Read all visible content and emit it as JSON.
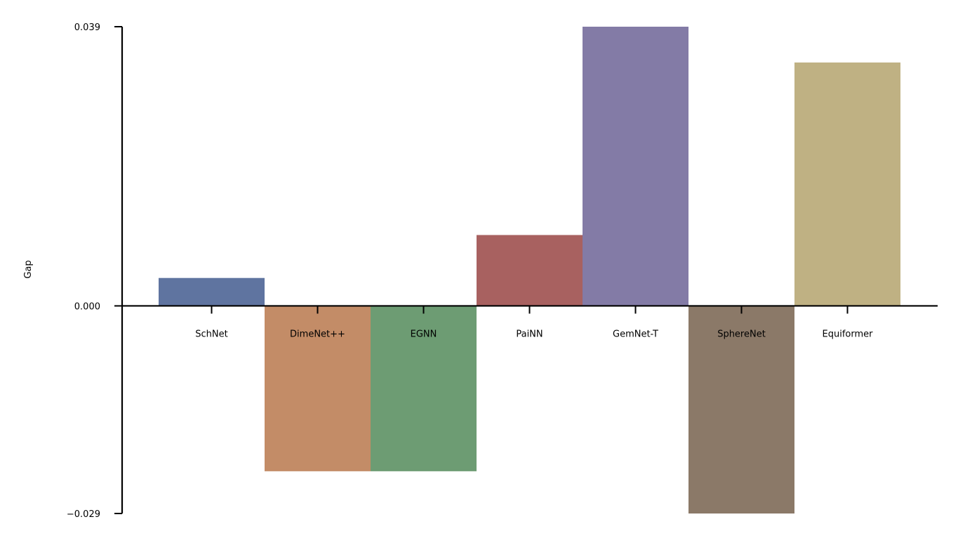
{
  "chart_data": {
    "type": "bar",
    "title": "",
    "xlabel": "",
    "ylabel": "Gap",
    "categories": [
      "SchNet",
      "DimeNet++",
      "EGNN",
      "PaiNN",
      "GemNet-T",
      "SphereNet",
      "Equiformer"
    ],
    "values": [
      0.0039,
      -0.0231,
      -0.0231,
      0.0099,
      0.039,
      -0.029,
      0.034
    ],
    "colors": [
      "#5f74a0",
      "#c38c67",
      "#6d9c73",
      "#a86160",
      "#837ba6",
      "#8b7968",
      "#bfb183"
    ],
    "ylim": [
      -0.029,
      0.039
    ],
    "yticks": [
      -0.029,
      0.0,
      0.039
    ],
    "ytick_labels": [
      "−0.029",
      "0.000",
      "0.039"
    ],
    "grid": false,
    "legend": "none"
  }
}
